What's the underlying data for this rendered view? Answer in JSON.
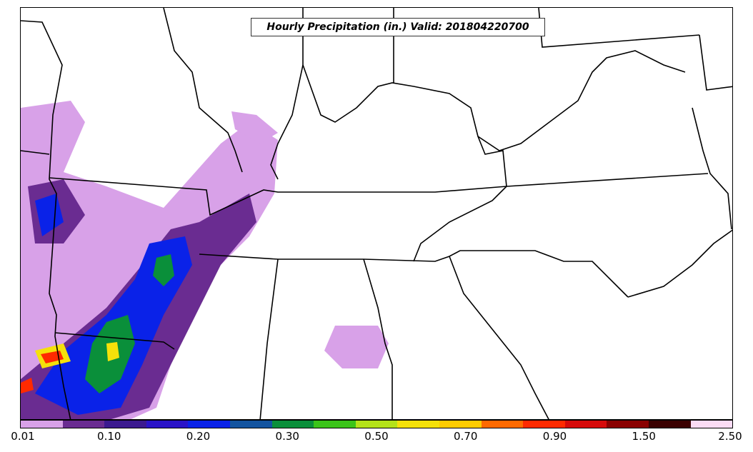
{
  "title": "Hourly Precipitation (in.) Valid: 201804220700",
  "colorbar": {
    "colors": [
      "#d8a1e8",
      "#6a2c91",
      "#3b1a8f",
      "#2a14c8",
      "#0a22e8",
      "#13549f",
      "#0a8f3a",
      "#3bc41a",
      "#b4e21a",
      "#f5e10a",
      "#ffcc00",
      "#ff6a00",
      "#ff2a00",
      "#d60a0a",
      "#8a0000",
      "#3a0000",
      "#fbdcf5"
    ],
    "tick_labels": [
      "0.01",
      "0.10",
      "0.20",
      "0.30",
      "0.50",
      "0.70",
      "0.90",
      "1.50",
      "2.50"
    ]
  }
}
